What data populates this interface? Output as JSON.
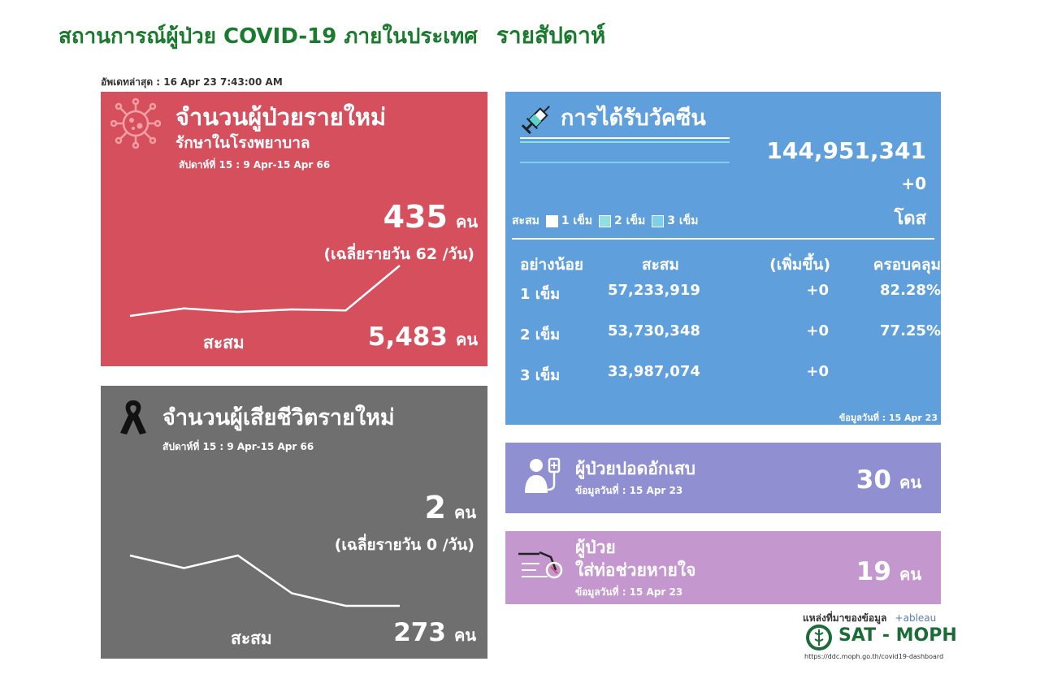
{
  "page": {
    "title_main": "สถานการณ์ผู้ป่วย COVID-19 ภายในประเทศ",
    "title_weekly": "รายสัปดาห์",
    "last_updated": "อัพเดทล่าสุด : 16 Apr 23 7:43:00 AM"
  },
  "cases": {
    "title": "จำนวนผู้ป่วยรายใหม่",
    "subtitle": "รักษาในโรงพยาบาล",
    "week": "สัปดาห์ที่ 15 : 9 Apr-15 Apr 66",
    "count": "435",
    "unit": "คน",
    "daily_avg": "(เฉลี่ยรายวัน 62 /วัน)",
    "cumulative_label": "สะสม",
    "cumulative": "5,483",
    "trend": [
      368,
      383,
      376,
      381,
      379,
      469
    ],
    "color": "#d64f5d",
    "icon": "virus-icon"
  },
  "deaths": {
    "title": "จำนวนผู้เสียชีวิตรายใหม่",
    "week": "สัปดาห์ที่  15 : 9 Apr-15 Apr 66",
    "count": "2",
    "unit": "คน",
    "daily_avg": "(เฉลี่ยรายวัน 0 /วัน)",
    "cumulative_label": "สะสม",
    "cumulative": "273",
    "trend": [
      7,
      6,
      7,
      4,
      3,
      3
    ],
    "color": "#6f6f6f",
    "icon": "black-ribbon-icon"
  },
  "vaccine": {
    "title": "การได้รับวัคซีน",
    "total": "144,951,341",
    "increase": "+0",
    "unit": "โดส",
    "legend_prefix": "สะสม",
    "legend": [
      {
        "label": "1 เข็ม",
        "color": "#ffffff"
      },
      {
        "label": "2 เข็ม",
        "color": "#8fe0e6"
      },
      {
        "label": "3 เข็ม",
        "color": "#7ed0e8"
      }
    ],
    "headers": [
      "อย่างน้อย",
      "สะสม",
      "(เพิ่มขึ้น)",
      "ครอบคลุม"
    ],
    "rows": [
      {
        "dose": "1 เข็ม",
        "cumulative": "57,233,919",
        "increase": "+0",
        "coverage": "82.28%"
      },
      {
        "dose": "2 เข็ม",
        "cumulative": "53,730,348",
        "increase": "+0",
        "coverage": "77.25%"
      },
      {
        "dose": "3 เข็ม",
        "cumulative": "33,987,074",
        "increase": "+0",
        "coverage": ""
      }
    ],
    "data_date": "ข้อมูลวันที่ : 15 Apr 23",
    "color": "#5f9fdc",
    "icon": "syringe-icon"
  },
  "pneumonia": {
    "title": "ผู้ป่วยปอดอักเสบ",
    "data_date": "ข้อมูลวันที่ : 15 Apr 23",
    "count": "30",
    "unit": "คน",
    "color": "#8f8fd2",
    "icon": "patient-iv-icon"
  },
  "ventilator": {
    "title_line1": "ผู้ป่วย",
    "title_line2": "ใส่ท่อช่วยหายใจ",
    "data_date": "ข้อมูลวันที่ : 15 Apr 23",
    "count": "19",
    "unit": "คน",
    "color": "#c497cf",
    "icon": "ventilator-icon"
  },
  "footer": {
    "source_label": "แหล่งที่มาของข้อมูล",
    "tableau": "+ableau",
    "org": "SAT - MOPH",
    "url": "https://ddc.moph.go.th/covid19-dashboard"
  }
}
